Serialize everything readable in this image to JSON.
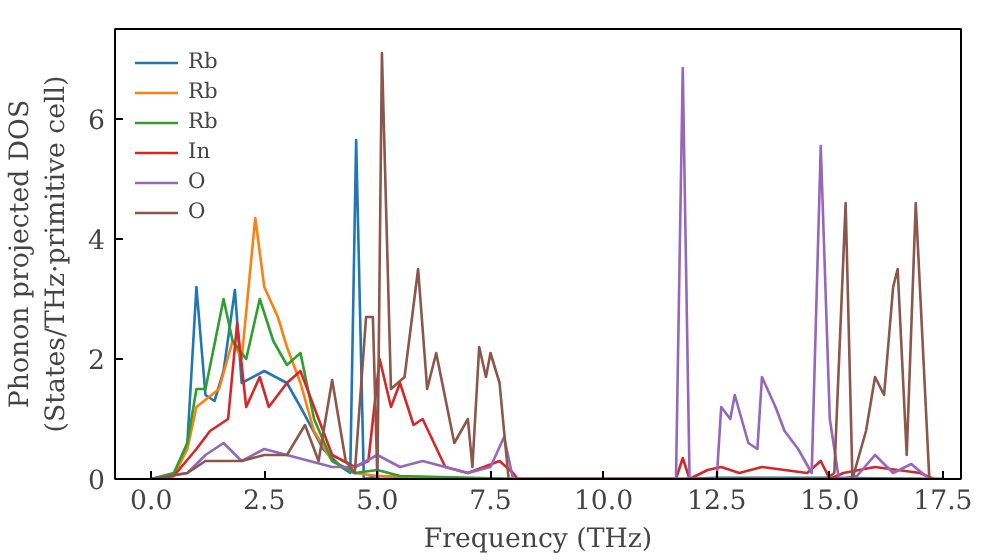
{
  "chart_data": {
    "type": "line",
    "xlabel": "Frequency (THz)",
    "ylabel": "Phonon projected DOS\n(States/THz·primitive cell)",
    "xlim": [
      -0.8,
      17.9
    ],
    "ylim": [
      0,
      7.5
    ],
    "xticks": [
      {
        "value": 0,
        "label": "0.0"
      },
      {
        "value": 2.5,
        "label": "2.5"
      },
      {
        "value": 5,
        "label": "5.0"
      },
      {
        "value": 7.5,
        "label": "7.5"
      },
      {
        "value": 10,
        "label": "10.0"
      },
      {
        "value": 12.5,
        "label": "12.5"
      },
      {
        "value": 15,
        "label": "15.0"
      },
      {
        "value": 17.5,
        "label": "17.5"
      }
    ],
    "yticks": [
      0,
      2,
      4,
      6
    ],
    "grid": false,
    "legend": "top left",
    "series": [
      {
        "name": "Rb",
        "color": "#1f77b4",
        "x": [
          0,
          0.5,
          0.8,
          1.0,
          1.2,
          1.4,
          1.6,
          1.85,
          2.0,
          2.5,
          3.0,
          3.3,
          3.8,
          4.2,
          4.4,
          4.53,
          4.7,
          5.0,
          6.0,
          8.0,
          11.7,
          12.5,
          15.0,
          17.5
        ],
        "values": [
          0,
          0.05,
          0.6,
          3.2,
          1.4,
          1.3,
          1.8,
          3.15,
          1.6,
          1.8,
          1.6,
          1.2,
          0.5,
          0.2,
          0.1,
          5.65,
          0,
          0.05,
          0.02,
          0,
          0,
          0.02,
          0.02,
          0
        ]
      },
      {
        "name": "Rb",
        "color": "#ff7f0e",
        "x": [
          0,
          0.5,
          0.8,
          1.0,
          1.5,
          1.8,
          2.0,
          2.3,
          2.5,
          2.8,
          3.0,
          3.3,
          3.6,
          4.0,
          4.5,
          5.0,
          8.0,
          17.5
        ],
        "values": [
          0,
          0.05,
          0.5,
          1.2,
          1.5,
          2.3,
          2.0,
          4.35,
          3.2,
          2.7,
          2.2,
          1.6,
          0.8,
          0.3,
          0.1,
          0.05,
          0,
          0
        ]
      },
      {
        "name": "Rb",
        "color": "#2ca02c",
        "x": [
          0,
          0.5,
          0.8,
          1.0,
          1.2,
          1.6,
          1.8,
          2.1,
          2.4,
          2.7,
          3.0,
          3.3,
          3.6,
          4.0,
          4.5,
          5.0,
          5.5,
          8.0,
          17.5
        ],
        "values": [
          0,
          0.1,
          0.6,
          1.5,
          1.5,
          3.0,
          2.3,
          2.0,
          3.0,
          2.3,
          1.9,
          2.1,
          1.0,
          0.3,
          0.1,
          0.15,
          0.05,
          0,
          0
        ]
      },
      {
        "name": "In",
        "color": "#d62728",
        "x": [
          0,
          0.5,
          1.0,
          1.3,
          1.7,
          1.9,
          2.1,
          2.4,
          2.6,
          3.0,
          3.3,
          3.6,
          4.0,
          4.5,
          4.8,
          5.05,
          5.3,
          5.5,
          5.8,
          6.0,
          6.5,
          7.0,
          7.7,
          8.0,
          8.1,
          11.6,
          11.75,
          11.9,
          12.3,
          12.6,
          13.0,
          13.5,
          14.5,
          14.8,
          15.0,
          15.3,
          16.0,
          17.0,
          17.3
        ],
        "values": [
          0,
          0.05,
          0.5,
          0.8,
          1.0,
          2.6,
          1.2,
          1.7,
          1.2,
          1.6,
          1.8,
          1.2,
          0.4,
          0.2,
          0.3,
          2.0,
          1.2,
          1.6,
          0.9,
          1.0,
          0.2,
          0.1,
          0.3,
          0.1,
          0,
          0,
          0.35,
          0,
          0.15,
          0.2,
          0.1,
          0.2,
          0.1,
          0.3,
          0,
          0.1,
          0.2,
          0.1,
          0
        ]
      },
      {
        "name": "O",
        "color": "#9467bd",
        "x": [
          0,
          0.8,
          1.2,
          1.6,
          2.0,
          2.5,
          3.0,
          3.5,
          4.0,
          4.5,
          5.0,
          5.5,
          6.0,
          7.0,
          7.5,
          7.8,
          8.0,
          11.6,
          11.75,
          11.9,
          12.5,
          12.6,
          12.8,
          12.9,
          13.2,
          13.4,
          13.5,
          13.8,
          14.0,
          14.3,
          14.6,
          14.8,
          15.0,
          15.2,
          15.6,
          16.0,
          16.4,
          16.8,
          17.2
        ],
        "values": [
          0,
          0.1,
          0.4,
          0.6,
          0.3,
          0.5,
          0.4,
          0.3,
          0.2,
          0.2,
          0.4,
          0.2,
          0.3,
          0.1,
          0.2,
          0.7,
          0,
          0,
          6.85,
          0,
          0,
          1.2,
          1.0,
          1.4,
          0.6,
          0.5,
          1.7,
          1.2,
          0.8,
          0.5,
          0.1,
          5.55,
          1.0,
          0,
          0.05,
          0.4,
          0.1,
          0.25,
          0
        ]
      },
      {
        "name": "O",
        "color": "#8c564b",
        "x": [
          0,
          0.8,
          1.2,
          2.0,
          2.5,
          3.0,
          3.4,
          3.7,
          4.0,
          4.3,
          4.5,
          4.75,
          4.9,
          5.0,
          5.1,
          5.3,
          5.6,
          5.9,
          6.1,
          6.3,
          6.7,
          7.0,
          7.1,
          7.25,
          7.4,
          7.5,
          7.7,
          7.9,
          14.9,
          15.1,
          15.35,
          15.5,
          15.8,
          16.0,
          16.2,
          16.4,
          16.5,
          16.7,
          16.9,
          17.2
        ],
        "values": [
          0,
          0.1,
          0.3,
          0.3,
          0.4,
          0.4,
          0.9,
          0.3,
          1.65,
          0.3,
          0.1,
          2.7,
          2.7,
          0,
          7.1,
          1.5,
          1.7,
          3.5,
          1.5,
          2.1,
          0.6,
          1.0,
          0.2,
          2.2,
          1.7,
          2.1,
          1.6,
          0,
          0,
          0.1,
          4.6,
          0,
          0.8,
          1.7,
          1.4,
          3.2,
          3.5,
          0.4,
          4.6,
          0
        ]
      }
    ]
  }
}
